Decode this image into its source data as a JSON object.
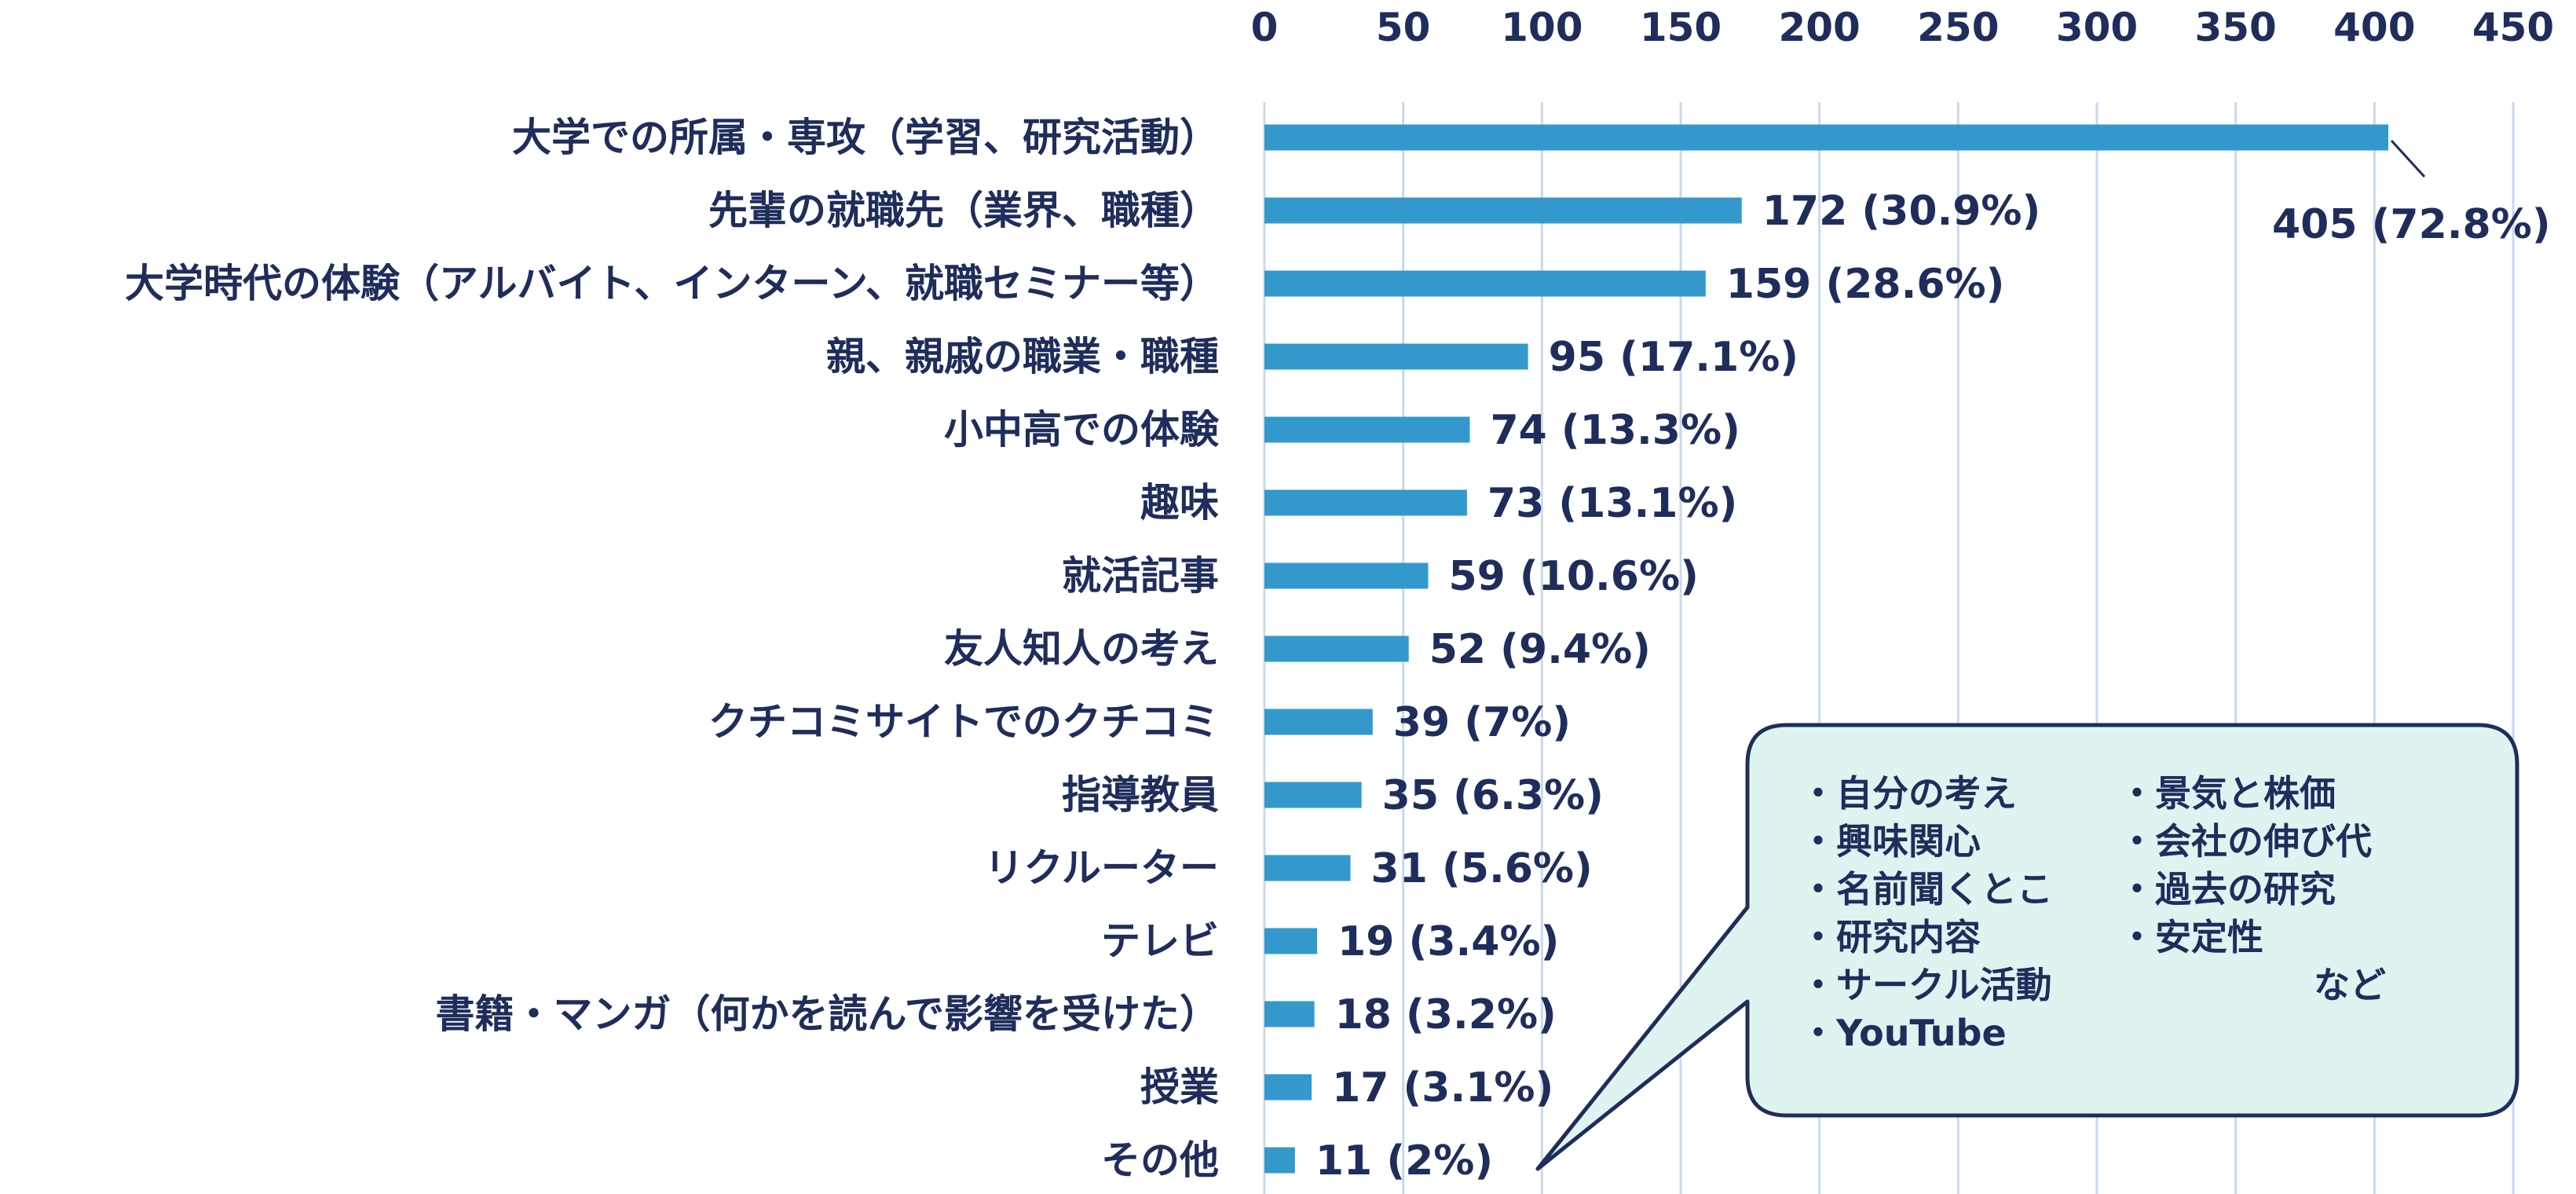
{
  "chart_data": {
    "type": "bar",
    "orientation": "horizontal",
    "xlim": [
      0,
      450
    ],
    "x_ticks": [
      0,
      50,
      100,
      150,
      200,
      250,
      300,
      350,
      400,
      450
    ],
    "tick_position": "top",
    "grid": true,
    "categories": [
      "大学での所属・専攻（学習、研究活動）",
      "先輩の就職先（業界、職種）",
      "大学時代の体験（アルバイト、インターン、就職セミナー等）",
      "親、親戚の職業・職種",
      "小中高での体験",
      "趣味",
      "就活記事",
      "友人知人の考え",
      "クチコミサイトでのクチコミ",
      "指導教員",
      "リクルーター",
      "テレビ",
      "書籍・マンガ（何かを読んで影響を受けた）",
      "授業",
      "その他"
    ],
    "values": [
      405,
      172,
      159,
      95,
      74,
      73,
      59,
      52,
      39,
      35,
      31,
      19,
      18,
      17,
      11
    ],
    "data_labels": [
      "405 (72.8%)",
      "172 (30.9%)",
      "159 (28.6%)",
      "95 (17.1%)",
      "74 (13.3%)",
      "73 (13.1%)",
      "59 (10.6%)",
      "52 (9.4%)",
      "39 (7%)",
      "35 (6.3%)",
      "31 (5.6%)",
      "19 (3.4%)",
      "18 (3.2%)",
      "17 (3.1%)",
      "11 (2%)"
    ],
    "title": "",
    "xlabel": "",
    "ylabel": "",
    "callout": {
      "left_items": [
        "・自分の考え",
        "・興味関心",
        "・名前聞くとこ",
        "・研究内容",
        "・サークル活動",
        "・YouTube"
      ],
      "right_items": [
        "・景気と株価",
        "・会社の伸び代",
        "・過去の研究",
        "・安定性"
      ],
      "suffix": "など"
    },
    "colors": {
      "bar": "#3399cc",
      "text": "#1f2d5c",
      "grid": "#c9d9ec",
      "callout_fill": "#dff3f1",
      "callout_stroke": "#1f2d5c"
    }
  }
}
